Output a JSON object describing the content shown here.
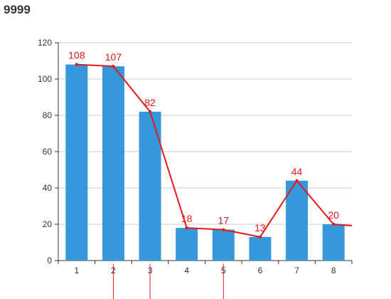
{
  "title": "9999",
  "chart_data": {
    "type": "bar",
    "title": "9999",
    "categories": [
      "1",
      "2",
      "3",
      "4",
      "5",
      "6",
      "7",
      "8"
    ],
    "series": [
      {
        "type": "bar",
        "values": [
          108,
          107,
          82,
          18,
          17,
          13,
          44,
          20
        ],
        "color": "#3498db"
      },
      {
        "type": "line",
        "values": [
          108,
          107,
          82,
          18,
          17,
          13,
          44,
          20
        ],
        "color": "#e41a1c"
      }
    ],
    "data_labels": [
      "108",
      "107",
      "82",
      "18",
      "17",
      "13",
      "44",
      "20"
    ],
    "y_ticks": [
      "0",
      "20",
      "40",
      "60",
      "80",
      "100",
      "120"
    ],
    "ylim": [
      0,
      120
    ],
    "grid": true,
    "xlabel": "",
    "ylabel": "",
    "colors": {
      "bar": "#3498db",
      "line": "#e41a1c",
      "grid": "#cccccc",
      "axis": "#333333"
    }
  }
}
